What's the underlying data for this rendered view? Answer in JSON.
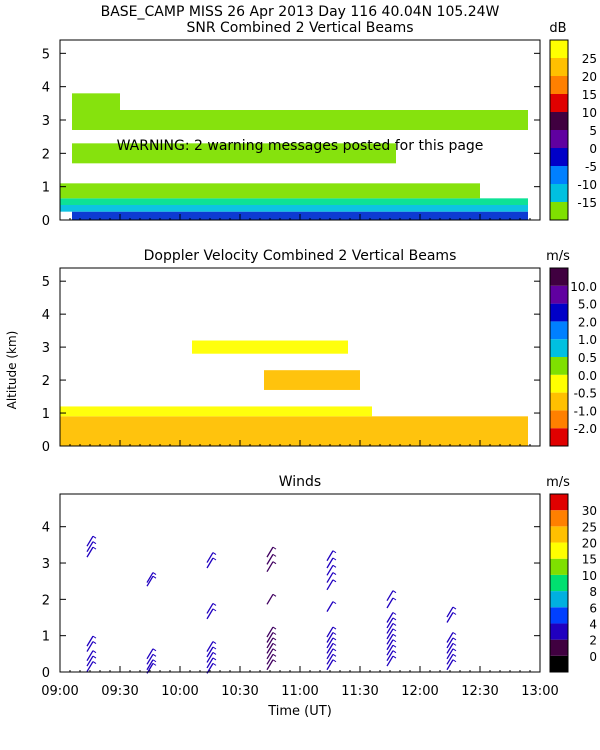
{
  "header": "BASE_CAMP MISS  26 Apr 2013 Day 116 40.04N 105.24W",
  "warning": "WARNING: 2 warning messages posted for this page",
  "xlabel": "Time (UT)",
  "ylabel": "Altitude (km)",
  "xticks": [
    "09:00",
    "09:30",
    "10:00",
    "10:30",
    "11:00",
    "11:30",
    "12:00",
    "12:30",
    "13:00"
  ],
  "xrange_hours": [
    9,
    13
  ],
  "chart_data": [
    {
      "type": "heatmap",
      "title": "SNR Combined 2 Vertical Beams",
      "units": "dB",
      "ylim": [
        0,
        5.4
      ],
      "yticks": [
        "0",
        "1",
        "2",
        "3",
        "4",
        "5"
      ],
      "colorbar": {
        "labels": [
          "-15",
          "-10",
          "-5",
          "0",
          "5",
          "10",
          "15",
          "20",
          "25"
        ],
        "colors": [
          "#7fe000",
          "#00c0e0",
          "#0080ff",
          "#0000c8",
          "#6000a0",
          "#400040",
          "#e00000",
          "#ff8000",
          "#ffc000",
          "#ffff00"
        ]
      },
      "bands": [
        {
          "from": 0.0,
          "to": 0.25,
          "color": "#0030d0",
          "start": 9.1,
          "end": 12.9
        },
        {
          "from": 0.25,
          "to": 0.45,
          "color": "#00c0e0",
          "start": 9.0,
          "end": 12.9
        },
        {
          "from": 0.45,
          "to": 0.65,
          "color": "#00e090",
          "start": 9.0,
          "end": 12.9
        },
        {
          "from": 0.65,
          "to": 1.1,
          "color": "#7fe000",
          "start": 9.0,
          "end": 12.5
        },
        {
          "from": 2.7,
          "to": 3.3,
          "color": "#7fe000",
          "start": 9.1,
          "end": 12.9
        },
        {
          "from": 1.7,
          "to": 2.3,
          "color": "#7fe000",
          "start": 9.1,
          "end": 11.8
        },
        {
          "from": 3.3,
          "to": 3.8,
          "color": "#7fe000",
          "start": 9.1,
          "end": 9.5
        }
      ]
    },
    {
      "type": "heatmap",
      "title": "Doppler Velocity Combined 2 Vertical Beams",
      "units": "m/s",
      "ylim": [
        0,
        5.4
      ],
      "yticks": [
        "0",
        "1",
        "2",
        "3",
        "4",
        "5"
      ],
      "colorbar": {
        "labels": [
          "-2.0",
          "-1.0",
          "-0.5",
          "0.0",
          "0.5",
          "1.0",
          "2.0",
          "5.0",
          "10.0"
        ],
        "colors": [
          "#e00000",
          "#ff8000",
          "#ffc000",
          "#ffff00",
          "#7fe000",
          "#00c0e0",
          "#0080ff",
          "#0000c8",
          "#6000a0",
          "#400040"
        ]
      },
      "bands": [
        {
          "from": 0.0,
          "to": 0.9,
          "color": "#ffc000",
          "start": 9.0,
          "end": 12.9
        },
        {
          "from": 0.9,
          "to": 1.2,
          "color": "#ffff00",
          "start": 9.0,
          "end": 11.6
        },
        {
          "from": 1.7,
          "to": 2.3,
          "color": "#ffc000",
          "start": 10.7,
          "end": 11.5
        },
        {
          "from": 2.8,
          "to": 3.2,
          "color": "#ffff00",
          "start": 10.1,
          "end": 11.4
        }
      ]
    },
    {
      "type": "wind-barbs",
      "title": "Winds",
      "units": "m/s",
      "ylim": [
        0,
        4.9
      ],
      "yticks": [
        "0",
        "1",
        "2",
        "3",
        "4"
      ],
      "colorbar": {
        "labels": [
          "0",
          "2",
          "4",
          "6",
          "8",
          "10",
          "15",
          "20",
          "25",
          "30"
        ],
        "colors": [
          "#000000",
          "#400040",
          "#2000c0",
          "#0040ff",
          "#00b0e0",
          "#00e070",
          "#7fe000",
          "#ffff00",
          "#ffc000",
          "#ff8000",
          "#e00000"
        ]
      },
      "profiles": [
        {
          "time": 9.25,
          "heights": [
            0.15,
            0.3,
            0.45,
            0.7,
            0.85,
            3.3,
            3.45,
            3.6
          ],
          "color": "#2000c0"
        },
        {
          "time": 9.75,
          "heights": [
            0.1,
            0.2,
            0.35,
            0.5,
            2.5,
            2.6
          ],
          "color": "#2000c0"
        },
        {
          "time": 10.25,
          "heights": [
            0.1,
            0.25,
            0.4,
            0.55,
            0.7,
            1.6,
            1.75,
            3.0,
            3.15
          ],
          "color": "#2000c0"
        },
        {
          "time": 10.75,
          "heights": [
            0.2,
            0.35,
            0.5,
            0.65,
            0.8,
            0.95,
            1.1,
            2.0,
            2.9,
            3.1,
            3.3
          ],
          "color": "#400060"
        },
        {
          "time": 11.25,
          "heights": [
            0.2,
            0.35,
            0.5,
            0.65,
            0.8,
            0.95,
            1.1,
            1.8,
            2.4,
            2.6,
            2.8,
            3.0,
            3.2
          ],
          "color": "#2000c0"
        },
        {
          "time": 11.75,
          "heights": [
            0.3,
            0.45,
            0.6,
            0.75,
            0.9,
            1.05,
            1.2,
            1.35,
            1.5,
            1.9,
            2.1
          ],
          "color": "#2000c0"
        },
        {
          "time": 12.25,
          "heights": [
            0.2,
            0.35,
            0.5,
            0.65,
            0.8,
            0.95,
            1.5,
            1.65
          ],
          "color": "#2000c0"
        }
      ]
    }
  ]
}
